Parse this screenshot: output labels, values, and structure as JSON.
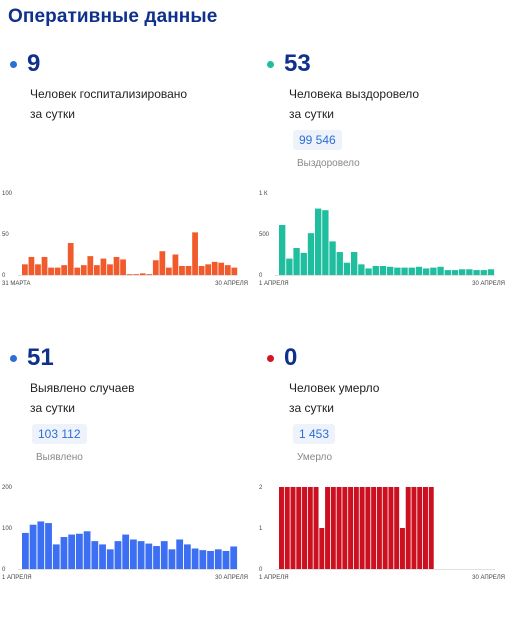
{
  "page_title": "Оперативные данные",
  "panels": [
    {
      "value": "9",
      "line1": "Человек госпитализировано",
      "line2": "за сутки",
      "total": "",
      "total_label": "",
      "dot_color": "#2c6ed6",
      "bar_color": "#f15a2b"
    },
    {
      "value": "53",
      "line1": "Человека выздоровело",
      "line2": "за сутки",
      "total": "99 546",
      "total_label": "Выздоровело",
      "dot_color": "#1fbe9e",
      "bar_color": "#1fbe9e"
    },
    {
      "value": "51",
      "line1": "Выявлено случаев",
      "line2": "за сутки",
      "total": "103 112",
      "total_label": "Выявлено",
      "dot_color": "#2c6ed6",
      "bar_color": "#3d6ff2"
    },
    {
      "value": "0",
      "line1": "Человек умерло",
      "line2": "за сутки",
      "total": "1 453",
      "total_label": "Умерло",
      "dot_color": "#d11525",
      "bar_color": "#cc1020"
    }
  ],
  "chart_data": [
    {
      "type": "bar",
      "x_start_label": "31 МАРТА",
      "x_end_label": "30 АПРЕЛЯ",
      "yticks": [
        "0",
        "50",
        "100"
      ],
      "ylim": [
        0,
        100
      ],
      "values": [
        13,
        22,
        13,
        22,
        9,
        9,
        12,
        39,
        9,
        12,
        23,
        12,
        20,
        13,
        22,
        19,
        1,
        1,
        2,
        1,
        18,
        29,
        9,
        25,
        11,
        11,
        52,
        11,
        13,
        16,
        15,
        12,
        9
      ]
    },
    {
      "type": "bar",
      "x_start_label": "1 АПРЕЛЯ",
      "x_end_label": "30 АПРЕЛЯ",
      "yticks": [
        "0",
        "500",
        "1 К"
      ],
      "ylim": [
        0,
        1000
      ],
      "values": [
        610,
        200,
        330,
        270,
        510,
        810,
        790,
        410,
        280,
        150,
        280,
        130,
        80,
        110,
        110,
        100,
        90,
        90,
        90,
        100,
        80,
        90,
        100,
        60,
        60,
        70,
        70,
        60,
        60,
        70
      ]
    },
    {
      "type": "bar",
      "x_start_label": "1 АПРЕЛЯ",
      "x_end_label": "30 АПРЕЛЯ",
      "yticks": [
        "0",
        "100",
        "200"
      ],
      "ylim": [
        0,
        200
      ],
      "values": [
        88,
        108,
        116,
        112,
        60,
        78,
        84,
        86,
        92,
        68,
        60,
        48,
        68,
        84,
        72,
        68,
        62,
        56,
        68,
        48,
        72,
        60,
        50,
        46,
        44,
        48,
        44,
        55
      ]
    },
    {
      "type": "bar",
      "x_start_label": "1 АПРЕЛЯ",
      "x_end_label": "30 АПРЕЛЯ",
      "yticks": [
        "0",
        "1",
        "2"
      ],
      "ylim": [
        0,
        2
      ],
      "values": [
        2,
        2,
        2,
        2,
        2,
        2,
        2,
        1,
        2,
        2,
        2,
        2,
        2,
        2,
        2,
        2,
        2,
        2,
        2,
        2,
        2,
        1,
        2,
        2,
        2,
        2,
        2
      ]
    }
  ]
}
